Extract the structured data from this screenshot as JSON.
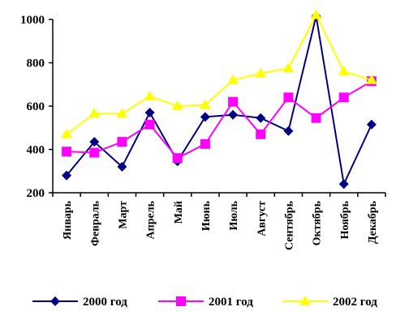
{
  "chart_data": {
    "type": "line",
    "title": "",
    "xlabel": "",
    "ylabel": "",
    "ylim": [
      200,
      1000
    ],
    "yticks": [
      200,
      400,
      600,
      800,
      1000
    ],
    "categories": [
      "Январь",
      "Февраль",
      "Март",
      "Апрель",
      "Май",
      "Июнь",
      "Июль",
      "Август",
      "Сентябрь",
      "Октябрь",
      "Ноябрь",
      "Декабрь"
    ],
    "grid": false,
    "legend_position": "bottom",
    "series": [
      {
        "name": "2000 год",
        "color": "#000080",
        "marker": "diamond",
        "values": [
          280,
          435,
          320,
          570,
          345,
          550,
          560,
          545,
          485,
          1015,
          240,
          515
        ]
      },
      {
        "name": "2001 год",
        "color": "#ff00ff",
        "marker": "square",
        "values": [
          390,
          385,
          435,
          515,
          360,
          425,
          620,
          470,
          640,
          545,
          640,
          715
        ]
      },
      {
        "name": "2002 год",
        "color": "#ffff00",
        "marker": "triangle",
        "values": [
          470,
          565,
          565,
          645,
          600,
          605,
          720,
          750,
          775,
          1020,
          760,
          720
        ]
      }
    ]
  }
}
